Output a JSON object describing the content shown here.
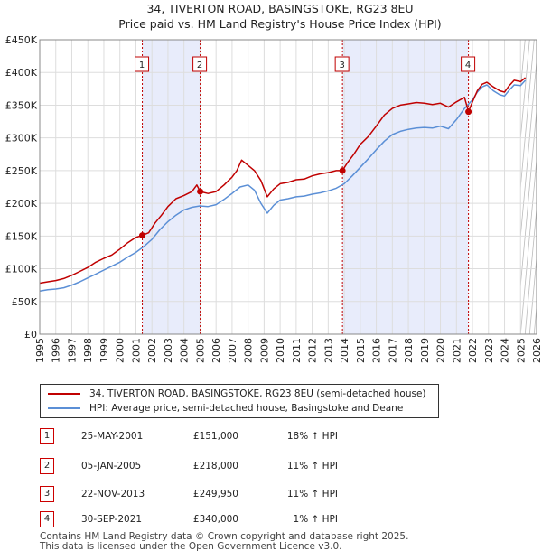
{
  "chart_data": {
    "type": "line",
    "title": "34, TIVERTON ROAD, BASINGSTOKE, RG23 8EU",
    "subtitle": "Price paid vs. HM Land Registry's House Price Index (HPI)",
    "xlim": [
      1995,
      2026
    ],
    "ylim": [
      0,
      450000
    ],
    "y_ticks": [
      0,
      50000,
      100000,
      150000,
      200000,
      250000,
      300000,
      350000,
      400000,
      450000
    ],
    "y_tick_labels": [
      "£0",
      "£50K",
      "£100K",
      "£150K",
      "£200K",
      "£250K",
      "£300K",
      "£350K",
      "£400K",
      "£450K"
    ],
    "x_ticks": [
      1995,
      1996,
      1997,
      1998,
      1999,
      2000,
      2001,
      2002,
      2003,
      2004,
      2005,
      2006,
      2007,
      2008,
      2009,
      2010,
      2011,
      2012,
      2013,
      2014,
      2015,
      2016,
      2017,
      2018,
      2019,
      2020,
      2021,
      2022,
      2023,
      2024,
      2025,
      2026
    ],
    "x_tick_labels": [
      "1995",
      "1996",
      "1997",
      "1998",
      "1999",
      "2000",
      "2001",
      "2002",
      "2003",
      "2004",
      "2005",
      "2006",
      "2007",
      "2008",
      "2009",
      "2010",
      "2011",
      "2012",
      "2013",
      "2014",
      "2015",
      "2016",
      "2017",
      "2018",
      "2019",
      "2020",
      "2021",
      "2022",
      "2023",
      "2024",
      "2025",
      "2026"
    ],
    "series": [
      {
        "name": "34, TIVERTON ROAD, BASINGSTOKE, RG23 8EU (semi-detached house)",
        "color": "#c00000",
        "x": [
          1995.0,
          1995.5,
          1996.0,
          1996.5,
          1997.0,
          1997.5,
          1998.0,
          1998.5,
          1999.0,
          1999.5,
          2000.0,
          2000.5,
          2001.0,
          2001.4,
          2001.8,
          2002.2,
          2002.6,
          2003.0,
          2003.5,
          2004.0,
          2004.5,
          2004.8,
          2005.01,
          2005.5,
          2006.0,
          2006.5,
          2007.0,
          2007.3,
          2007.6,
          2008.0,
          2008.4,
          2008.8,
          2009.2,
          2009.6,
          2010.0,
          2010.5,
          2011.0,
          2011.5,
          2012.0,
          2012.5,
          2013.0,
          2013.5,
          2013.89,
          2014.2,
          2014.6,
          2015.0,
          2015.5,
          2016.0,
          2016.5,
          2017.0,
          2017.5,
          2018.0,
          2018.5,
          2019.0,
          2019.5,
          2020.0,
          2020.5,
          2021.0,
          2021.5,
          2021.75,
          2022.0,
          2022.3,
          2022.6,
          2022.9,
          2023.3,
          2023.7,
          2024.0,
          2024.3,
          2024.6,
          2025.0,
          2025.3
        ],
        "values": [
          78000,
          80000,
          82000,
          85000,
          90000,
          96000,
          102000,
          110000,
          116000,
          121000,
          130000,
          140000,
          148000,
          151000,
          155000,
          170000,
          182000,
          195000,
          207000,
          212000,
          218000,
          228000,
          218000,
          215000,
          218000,
          228000,
          240000,
          250000,
          266000,
          258000,
          250000,
          235000,
          210000,
          222000,
          230000,
          232000,
          236000,
          237000,
          242000,
          245000,
          247000,
          250000,
          249950,
          262000,
          275000,
          290000,
          302000,
          318000,
          335000,
          345000,
          350000,
          352000,
          354000,
          353000,
          351000,
          353000,
          347000,
          355000,
          362000,
          340000,
          355000,
          372000,
          382000,
          385000,
          378000,
          372000,
          370000,
          380000,
          388000,
          386000,
          392000
        ]
      },
      {
        "name": "HPI: Average price, semi-detached house, Basingstoke and Deane",
        "color": "#5b8fd6",
        "x": [
          1995.0,
          1995.5,
          1996.0,
          1996.5,
          1997.0,
          1997.5,
          1998.0,
          1998.5,
          1999.0,
          1999.5,
          2000.0,
          2000.5,
          2001.0,
          2001.5,
          2002.0,
          2002.5,
          2003.0,
          2003.5,
          2004.0,
          2004.5,
          2005.0,
          2005.5,
          2006.0,
          2006.5,
          2007.0,
          2007.5,
          2008.0,
          2008.4,
          2008.8,
          2009.2,
          2009.6,
          2010.0,
          2010.5,
          2011.0,
          2011.5,
          2012.0,
          2012.5,
          2013.0,
          2013.5,
          2014.0,
          2014.5,
          2015.0,
          2015.5,
          2016.0,
          2016.5,
          2017.0,
          2017.5,
          2018.0,
          2018.5,
          2019.0,
          2019.5,
          2020.0,
          2020.5,
          2021.0,
          2021.5,
          2022.0,
          2022.3,
          2022.6,
          2022.9,
          2023.3,
          2023.7,
          2024.0,
          2024.3,
          2024.6,
          2025.0,
          2025.3
        ],
        "values": [
          66000,
          68000,
          69000,
          71000,
          75000,
          80000,
          86000,
          92000,
          98000,
          104000,
          110000,
          118000,
          125000,
          134000,
          145000,
          160000,
          172000,
          182000,
          190000,
          194000,
          196000,
          195000,
          198000,
          206000,
          215000,
          225000,
          228000,
          220000,
          200000,
          185000,
          197000,
          205000,
          207000,
          210000,
          211000,
          214000,
          216000,
          219000,
          223000,
          230000,
          242000,
          255000,
          268000,
          282000,
          295000,
          305000,
          310000,
          313000,
          315000,
          316000,
          315000,
          318000,
          314000,
          328000,
          345000,
          358000,
          370000,
          378000,
          381000,
          372000,
          366000,
          364000,
          373000,
          381000,
          380000,
          388000
        ]
      }
    ],
    "transactions": [
      {
        "label": "1",
        "x": 2001.4,
        "y": 151000
      },
      {
        "label": "2",
        "x": 2005.01,
        "y": 218000
      },
      {
        "label": "3",
        "x": 2013.89,
        "y": 249950
      },
      {
        "label": "4",
        "x": 2021.75,
        "y": 340000
      }
    ]
  },
  "legend": {
    "property": "34, TIVERTON ROAD, BASINGSTOKE, RG23 8EU (semi-detached house)",
    "hpi": "HPI: Average price, semi-detached house, Basingstoke and Deane"
  },
  "table": [
    {
      "num": "1",
      "date": "25-MAY-2001",
      "price": "£151,000",
      "hpi": "18% ↑ HPI"
    },
    {
      "num": "2",
      "date": "05-JAN-2005",
      "price": "£218,000",
      "hpi": "11% ↑ HPI"
    },
    {
      "num": "3",
      "date": "22-NOV-2013",
      "price": "£249,950",
      "hpi": "11% ↑ HPI"
    },
    {
      "num": "4",
      "date": "30-SEP-2021",
      "price": "£340,000",
      "hpi": "1% ↑ HPI"
    }
  ],
  "footer": {
    "line1": "Contains HM Land Registry data © Crown copyright and database right 2025.",
    "line2": "This data is licensed under the Open Government Licence v3.0."
  },
  "colors": {
    "property_line": "#c00000",
    "hpi_line": "#5b8fd6",
    "shade": "#e8ecfb",
    "grid": "#dddddd"
  }
}
